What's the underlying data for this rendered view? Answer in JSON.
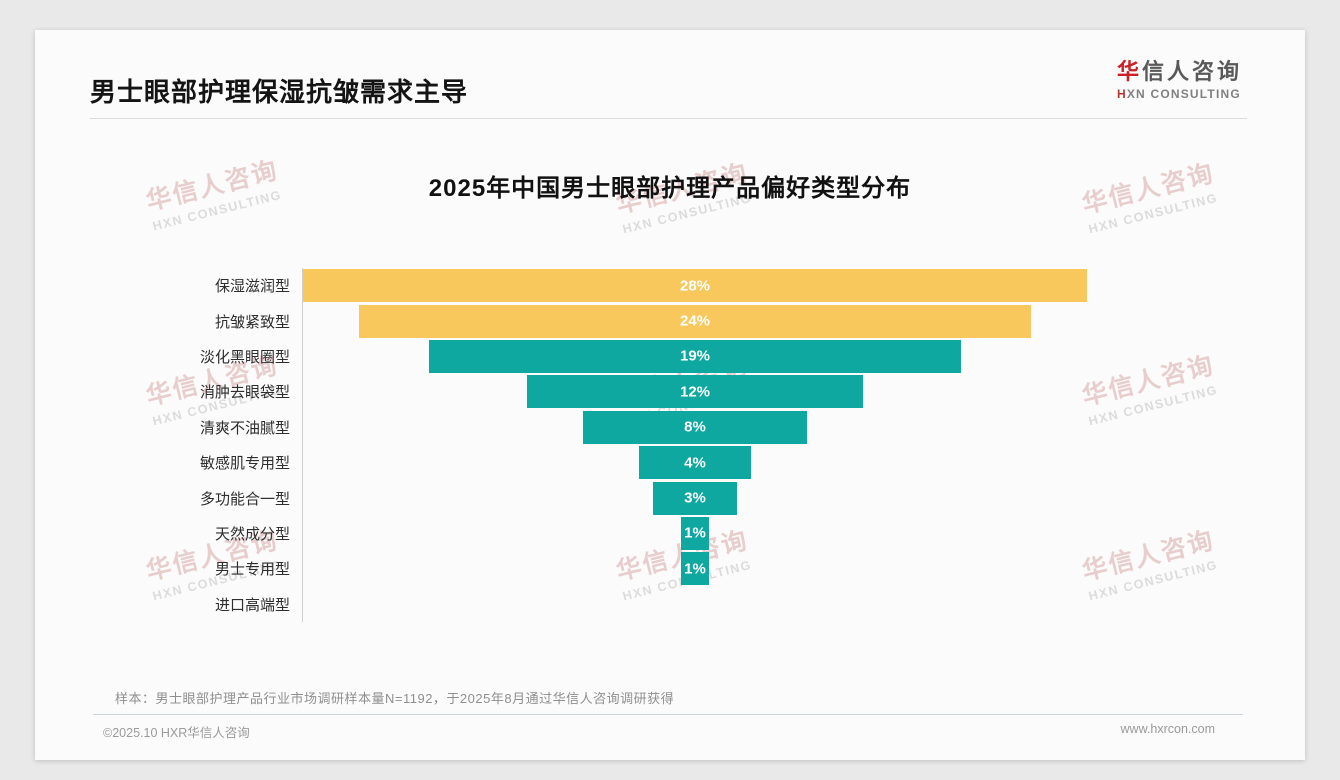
{
  "page": {
    "main_title": "男士眼部护理保湿抗皱需求主导",
    "logo": {
      "cn_first": "华",
      "cn_rest": "信人咨询",
      "en_first": "H",
      "en_rest": "XN CONSULTING"
    },
    "note": "样本：男士眼部护理产品行业市场调研样本量N=1192，于2025年8月通过华信人咨询调研获得",
    "footer": {
      "copyright": "©2025.10 HXR华信人咨询",
      "website": "www.hxrcon.com"
    },
    "watermark": {
      "line1": "华信人咨询",
      "line2": "HXN CONSULTING"
    }
  },
  "chart_data": {
    "type": "bar",
    "variant": "centered-funnel-horizontal",
    "title": "2025年中国男士眼部护理产品偏好类型分布",
    "categories": [
      "保湿滋润型",
      "抗皱紧致型",
      "淡化黑眼圈型",
      "消肿去眼袋型",
      "清爽不油腻型",
      "敏感肌专用型",
      "多功能合一型",
      "天然成分型",
      "男士专用型",
      "进口高端型"
    ],
    "values": [
      28,
      24,
      19,
      12,
      8,
      4,
      3,
      1,
      1,
      0
    ],
    "value_labels": [
      "28%",
      "24%",
      "19%",
      "12%",
      "8%",
      "4%",
      "3%",
      "1%",
      "1%",
      ""
    ],
    "bar_colors": [
      "#F8C85C",
      "#F8C85C",
      "#0FA8A1",
      "#0FA8A1",
      "#0FA8A1",
      "#0FA8A1",
      "#0FA8A1",
      "#0FA8A1",
      "#0FA8A1",
      "#0FA8A1"
    ],
    "highlight_color": "#F8C85C",
    "base_color": "#0FA8A1",
    "xlim": [
      0,
      28
    ],
    "unit": "%",
    "grid": false,
    "legend": false
  }
}
